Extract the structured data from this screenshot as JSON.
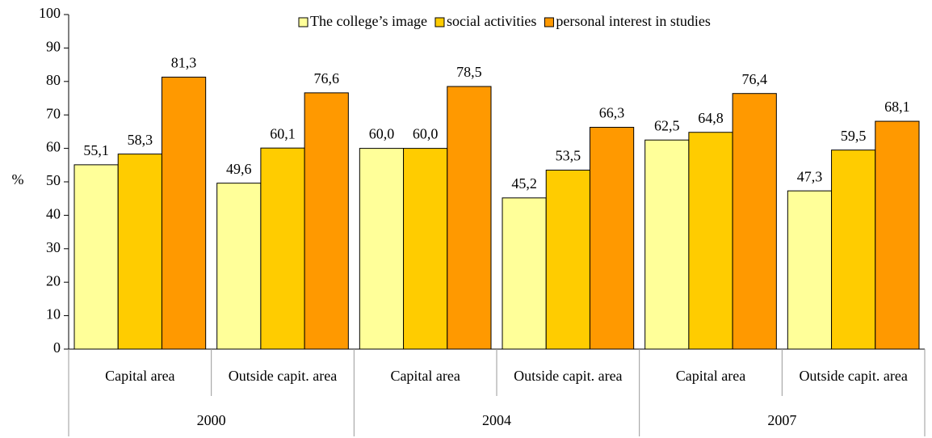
{
  "chart_data": {
    "type": "bar",
    "y_label": "%",
    "categories": [
      "Capital area",
      "Outside capit. area",
      "Capital area",
      "Outside capit. area",
      "Capital area",
      "Outside capit. area"
    ],
    "category_groups": [
      "2000",
      "2004",
      "2007"
    ],
    "series": [
      {
        "name": "The college’s image",
        "color": "#FFFF99",
        "values": [
          55.1,
          49.6,
          60.0,
          45.2,
          62.5,
          47.3
        ],
        "value_labels": [
          "55,1",
          "49,6",
          "60,0",
          "45,2",
          "62,5",
          "47,3"
        ]
      },
      {
        "name": "social activities",
        "color": "#FFCC00",
        "values": [
          58.3,
          60.1,
          60.0,
          53.5,
          64.8,
          59.5
        ],
        "value_labels": [
          "58,3",
          "60,1",
          "60,0",
          "53,5",
          "64,8",
          "59,5"
        ]
      },
      {
        "name": "personal interest in studies",
        "color": "#FF9900",
        "values": [
          81.3,
          76.6,
          78.5,
          66.3,
          76.4,
          68.1
        ],
        "value_labels": [
          "81,3",
          "76,6",
          "78,5",
          "66,3",
          "76,4",
          "68,1"
        ]
      }
    ],
    "ylim": [
      0,
      100
    ],
    "yticks": [
      0,
      10,
      20,
      30,
      40,
      50,
      60,
      70,
      80,
      90,
      100
    ],
    "grid": false,
    "legend": "top"
  }
}
